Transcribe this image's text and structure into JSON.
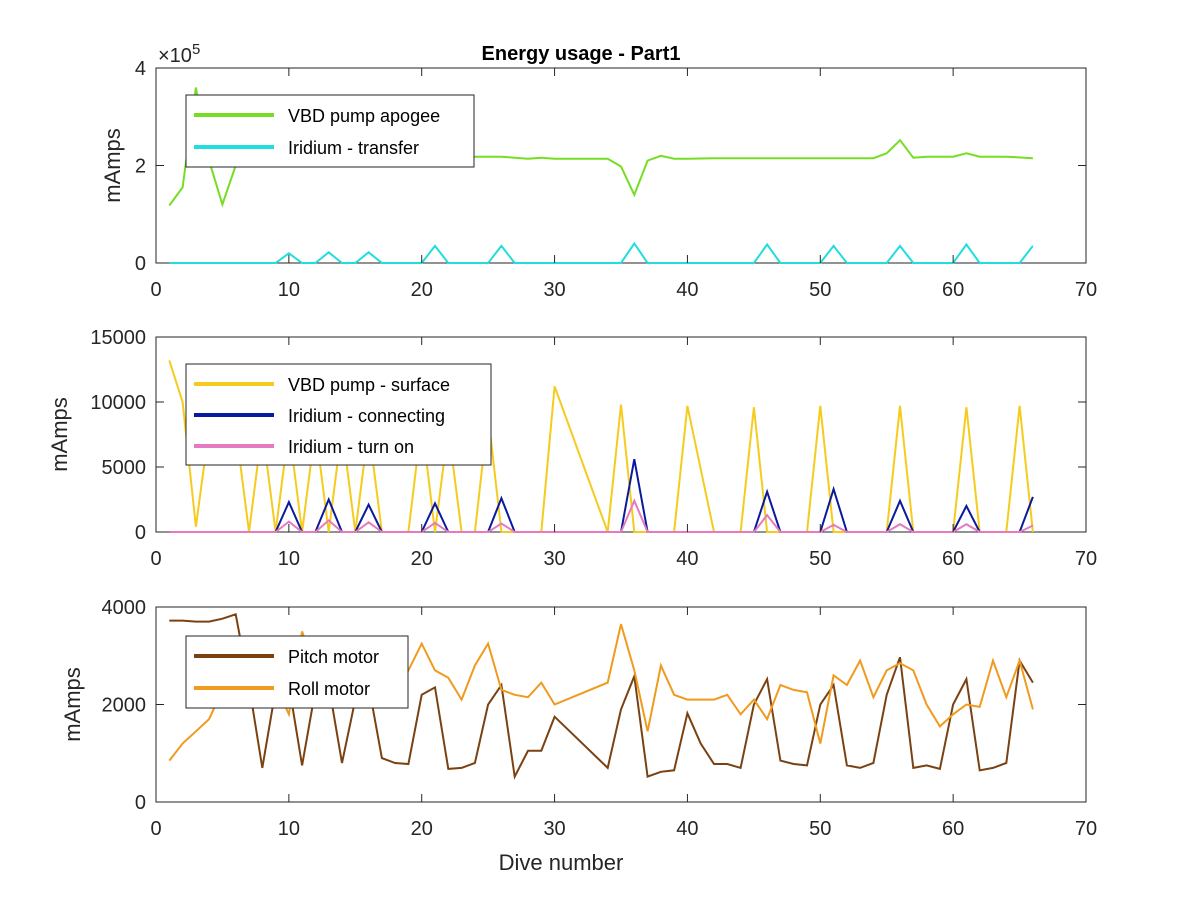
{
  "chart_data": [
    {
      "type": "line",
      "title": "Energy usage - Part1",
      "xlabel": "",
      "ylabel": "mAmps",
      "xlim": [
        0,
        70
      ],
      "ylim": [
        0,
        400000
      ],
      "y_exponent_label": "×10",
      "y_exponent_power": "5",
      "x_ticks": [
        "0",
        "10",
        "20",
        "30",
        "40",
        "50",
        "60",
        "70"
      ],
      "y_ticks": [
        "0",
        "2",
        "4"
      ],
      "y_tick_values": [
        0,
        200000,
        400000
      ],
      "legend_location": "top-left",
      "series": [
        {
          "name": "VBD pump apogee",
          "color": "#77dd22",
          "x": [
            1,
            2,
            3,
            4,
            5,
            6,
            7,
            8,
            9,
            10,
            12,
            14,
            16,
            18,
            20,
            22,
            24,
            26,
            28,
            29,
            30,
            32,
            34,
            35,
            36,
            37,
            38,
            39,
            40,
            42,
            44,
            46,
            48,
            50,
            52,
            54,
            55,
            56,
            57,
            58,
            60,
            61,
            62,
            64,
            66
          ],
          "y": [
            118000,
            155000,
            360000,
            210000,
            120000,
            200000,
            215000,
            218000,
            218000,
            218000,
            218000,
            218000,
            218000,
            218000,
            218000,
            218000,
            218000,
            218000,
            214000,
            216000,
            214000,
            214000,
            214000,
            198000,
            140000,
            210000,
            220000,
            214000,
            214000,
            215000,
            215000,
            215000,
            215000,
            215000,
            215000,
            215000,
            225000,
            252000,
            216000,
            218000,
            218000,
            225000,
            218000,
            218000,
            215000
          ]
        },
        {
          "name": "Iridium - transfer",
          "color": "#22dddd",
          "x": [
            1,
            9,
            10,
            11,
            12,
            13,
            14,
            15,
            16,
            17,
            20,
            21,
            22,
            25,
            26,
            27,
            35,
            36,
            37,
            45,
            46,
            47,
            50,
            51,
            52,
            55,
            56,
            57,
            60,
            61,
            62,
            65,
            66
          ],
          "y": [
            0,
            0,
            20000,
            0,
            0,
            22000,
            0,
            0,
            22000,
            0,
            0,
            35000,
            0,
            0,
            35000,
            0,
            0,
            40000,
            0,
            0,
            38000,
            0,
            0,
            35000,
            0,
            0,
            35000,
            0,
            0,
            38000,
            0,
            0,
            35000
          ]
        }
      ]
    },
    {
      "type": "line",
      "title": "",
      "xlabel": "",
      "ylabel": "mAmps",
      "xlim": [
        0,
        70
      ],
      "ylim": [
        0,
        15000
      ],
      "x_ticks": [
        "0",
        "10",
        "20",
        "30",
        "40",
        "50",
        "60",
        "70"
      ],
      "y_ticks": [
        "0",
        "5000",
        "10000",
        "15000"
      ],
      "y_tick_values": [
        0,
        5000,
        10000,
        15000
      ],
      "legend_location": "top-left",
      "series": [
        {
          "name": "VBD pump - surface",
          "color": "#f5cc1e",
          "x": [
            1,
            2,
            3,
            4,
            5,
            6,
            7,
            8,
            9,
            10,
            11,
            12,
            13,
            14,
            15,
            16,
            17,
            18,
            19,
            20,
            21,
            22,
            23,
            24,
            25,
            26,
            27,
            28,
            29,
            30,
            34,
            35,
            36,
            38,
            39,
            40,
            42,
            44,
            45,
            46,
            48,
            49,
            50,
            51,
            53,
            55,
            56,
            57,
            59,
            60,
            61,
            62,
            64,
            65,
            66
          ],
          "y": [
            13200,
            10000,
            400,
            8000,
            9000,
            8000,
            0,
            8000,
            0,
            8000,
            0,
            8000,
            0,
            8000,
            0,
            8000,
            0,
            0,
            0,
            8500,
            0,
            8000,
            0,
            0,
            9000,
            0,
            0,
            0,
            0,
            11200,
            0,
            9800,
            0,
            0,
            0,
            9700,
            0,
            0,
            9600,
            0,
            0,
            0,
            9700,
            0,
            0,
            0,
            9700,
            0,
            0,
            0,
            9600,
            0,
            0,
            9700,
            0
          ]
        },
        {
          "name": "Iridium - connecting",
          "color": "#0a1a9c",
          "x": [
            1,
            9,
            10,
            11,
            12,
            13,
            14,
            15,
            16,
            17,
            20,
            21,
            22,
            25,
            26,
            27,
            35,
            36,
            37,
            45,
            46,
            47,
            50,
            51,
            52,
            55,
            56,
            57,
            60,
            61,
            62,
            65,
            66
          ],
          "y": [
            0,
            0,
            2300,
            0,
            0,
            2500,
            0,
            0,
            2100,
            0,
            0,
            2200,
            0,
            0,
            2600,
            0,
            0,
            5600,
            0,
            0,
            3100,
            0,
            0,
            3300,
            0,
            0,
            2400,
            0,
            0,
            2000,
            0,
            0,
            2700
          ]
        },
        {
          "name": "Iridium - turn on",
          "color": "#e67ac1",
          "x": [
            1,
            9,
            10,
            11,
            12,
            13,
            14,
            15,
            16,
            17,
            20,
            21,
            22,
            25,
            26,
            27,
            35,
            36,
            37,
            45,
            46,
            47,
            50,
            51,
            52,
            55,
            56,
            57,
            60,
            61,
            62,
            65,
            66
          ],
          "y": [
            0,
            0,
            800,
            0,
            0,
            900,
            0,
            0,
            750,
            0,
            0,
            700,
            0,
            0,
            650,
            0,
            0,
            2400,
            0,
            0,
            1300,
            0,
            0,
            550,
            0,
            0,
            600,
            0,
            0,
            600,
            0,
            0,
            500
          ]
        }
      ]
    },
    {
      "type": "line",
      "title": "",
      "xlabel": "Dive number",
      "ylabel": "mAmps",
      "xlim": [
        0,
        70
      ],
      "ylim": [
        0,
        4000
      ],
      "x_ticks": [
        "0",
        "10",
        "20",
        "30",
        "40",
        "50",
        "60",
        "70"
      ],
      "y_ticks": [
        "0",
        "2000",
        "4000"
      ],
      "y_tick_values": [
        0,
        2000,
        4000
      ],
      "legend_location": "top-left",
      "series": [
        {
          "name": "Pitch motor",
          "color": "#7a4212",
          "x": [
            1,
            2,
            3,
            4,
            5,
            6,
            7,
            8,
            9,
            10,
            11,
            12,
            13,
            14,
            15,
            16,
            17,
            18,
            19,
            20,
            21,
            22,
            23,
            24,
            25,
            26,
            27,
            28,
            29,
            30,
            34,
            35,
            36,
            37,
            38,
            39,
            40,
            41,
            42,
            43,
            44,
            45,
            46,
            47,
            48,
            49,
            50,
            51,
            52,
            53,
            54,
            55,
            56,
            57,
            58,
            59,
            60,
            61,
            62,
            63,
            64,
            65,
            66
          ],
          "y": [
            3720,
            3720,
            3700,
            3700,
            3760,
            3850,
            2400,
            700,
            2300,
            2400,
            750,
            2300,
            2400,
            800,
            2100,
            2400,
            900,
            800,
            780,
            2200,
            2350,
            680,
            700,
            800,
            2000,
            2400,
            520,
            1050,
            1050,
            1750,
            700,
            1900,
            2580,
            520,
            620,
            650,
            1820,
            1200,
            780,
            780,
            700,
            2000,
            2520,
            850,
            780,
            750,
            2000,
            2400,
            750,
            700,
            800,
            2200,
            2970,
            700,
            750,
            680,
            2000,
            2520,
            650,
            700,
            800,
            2900,
            2450
          ]
        },
        {
          "name": "Roll motor",
          "color": "#f09a1e",
          "x": [
            1,
            2,
            3,
            4,
            5,
            6,
            7,
            8,
            9,
            10,
            11,
            12,
            13,
            14,
            15,
            16,
            17,
            18,
            19,
            20,
            21,
            22,
            23,
            24,
            25,
            26,
            27,
            28,
            29,
            30,
            34,
            35,
            36,
            37,
            38,
            39,
            40,
            41,
            42,
            43,
            44,
            45,
            46,
            47,
            48,
            49,
            50,
            51,
            52,
            53,
            54,
            55,
            56,
            57,
            58,
            59,
            60,
            61,
            62,
            63,
            64,
            65,
            66
          ],
          "y": [
            850,
            1200,
            1450,
            1700,
            2300,
            2900,
            2900,
            2500,
            2400,
            1800,
            3500,
            2700,
            2500,
            2300,
            2800,
            2600,
            2900,
            3000,
            2700,
            3250,
            2700,
            2550,
            2100,
            2800,
            3250,
            2300,
            2200,
            2150,
            2450,
            2000,
            2450,
            3650,
            2700,
            1450,
            2800,
            2200,
            2100,
            2100,
            2100,
            2200,
            1800,
            2100,
            1700,
            2400,
            2300,
            2250,
            1200,
            2600,
            2400,
            2900,
            2150,
            2700,
            2850,
            2700,
            2000,
            1550,
            1800,
            2000,
            1950,
            2900,
            2150,
            2900,
            1900
          ]
        }
      ]
    }
  ]
}
